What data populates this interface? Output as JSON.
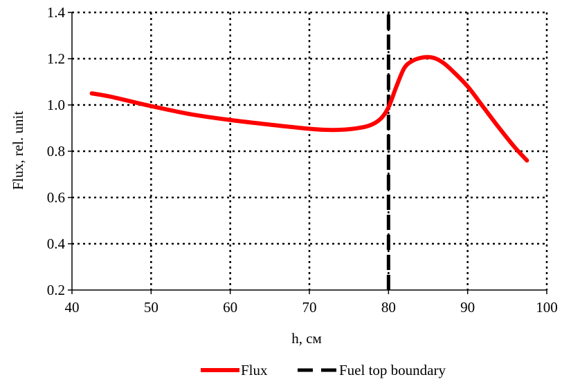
{
  "chart_data": {
    "type": "line",
    "xlabel": "h, см",
    "ylabel": "Flux, rel. unit",
    "xlim": [
      40,
      100
    ],
    "ylim": [
      0.2,
      1.4
    ],
    "x_ticks": [
      40,
      50,
      60,
      70,
      80,
      90,
      100
    ],
    "y_ticks": [
      0.2,
      0.4,
      0.6,
      0.8,
      1.0,
      1.2,
      1.4
    ],
    "x_tick_labels": [
      "40",
      "50",
      "60",
      "70",
      "80",
      "90",
      "100"
    ],
    "y_tick_labels": [
      "0.2",
      "0.4",
      "0.6",
      "0.8",
      "1.0",
      "1.2",
      "1.4"
    ],
    "grid": true,
    "legend_position": "bottom",
    "series": [
      {
        "name": "Flux",
        "color": "#ff0000",
        "style": "solid",
        "x": [
          42.5,
          45,
          50,
          55,
          60,
          65,
          70,
          72.5,
          75,
          77.5,
          79,
          80,
          81,
          82,
          83,
          84,
          85,
          86,
          87,
          88,
          90,
          92,
          94,
          96,
          97.5
        ],
        "y": [
          1.05,
          1.035,
          0.995,
          0.96,
          0.935,
          0.915,
          0.897,
          0.892,
          0.895,
          0.91,
          0.94,
          0.99,
          1.08,
          1.16,
          1.19,
          1.203,
          1.207,
          1.2,
          1.18,
          1.15,
          1.08,
          0.99,
          0.9,
          0.815,
          0.76
        ]
      },
      {
        "name": "Fuel top boundary",
        "color": "#000000",
        "style": "dashed",
        "x": [
          80,
          80
        ],
        "y": [
          0.2,
          1.4
        ]
      }
    ]
  }
}
